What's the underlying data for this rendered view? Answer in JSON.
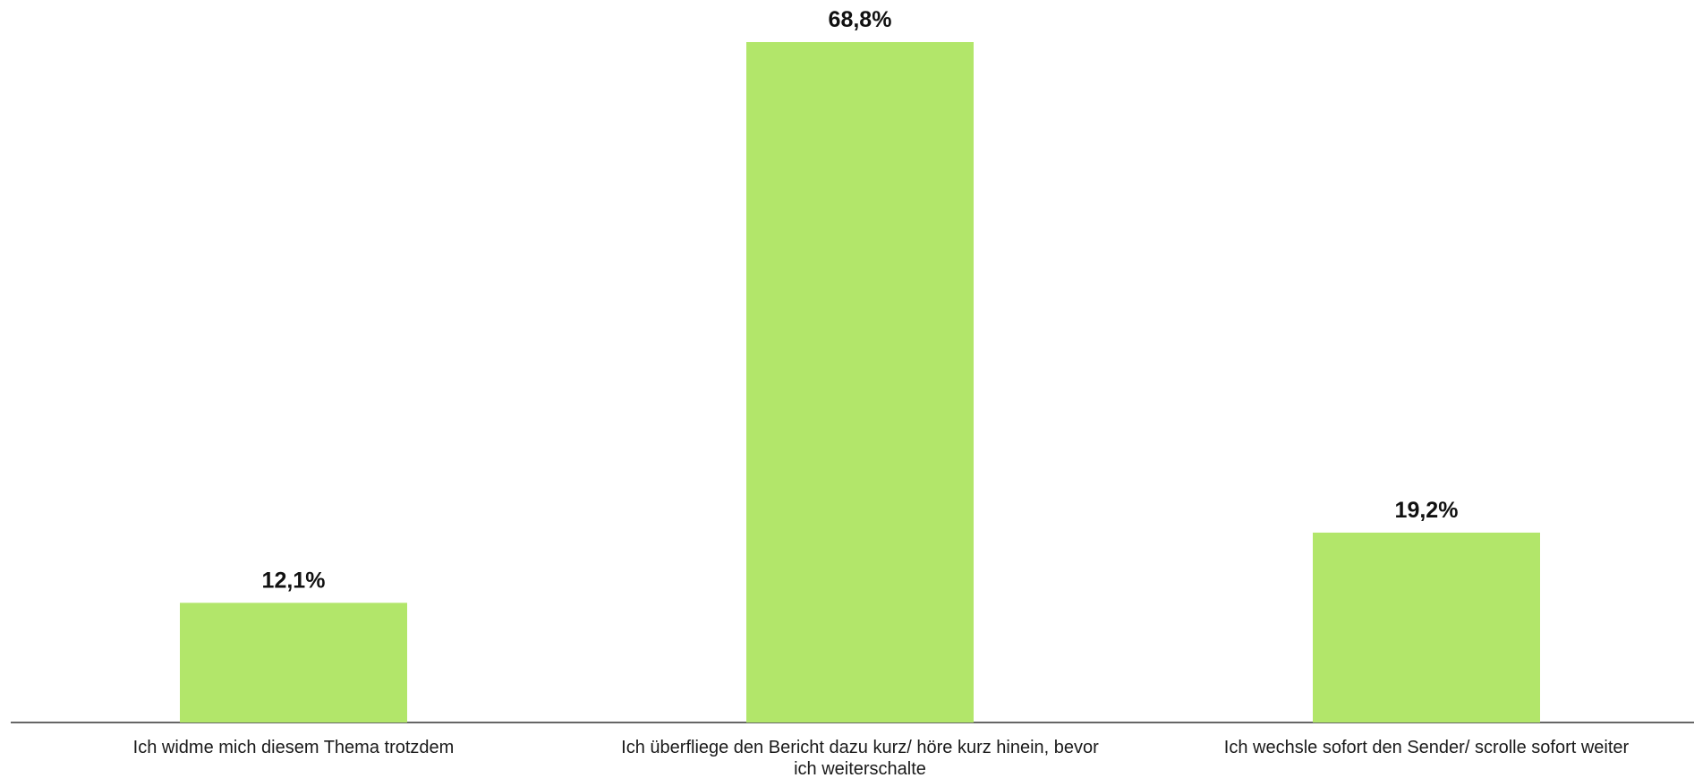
{
  "chart_data": {
    "type": "bar",
    "categories": [
      "Ich widme mich diesem Thema trotzdem",
      "Ich überfliege den Bericht dazu kurz/ höre kurz hinein, bevor ich weiterschalte",
      "Ich wechsle sofort den Sender/ scrolle sofort weiter"
    ],
    "category_label_lines": [
      [
        "Ich widme mich diesem Thema trotzdem"
      ],
      [
        "Ich überfliege den Bericht dazu kurz/ höre kurz hinein, bevor",
        "ich weiterschalte"
      ],
      [
        "Ich wechsle sofort den Sender/ scrolle sofort weiter"
      ]
    ],
    "values": [
      12.1,
      68.8,
      19.2
    ],
    "value_labels": [
      "12,1%",
      "68,8%",
      "19,2%"
    ],
    "title": "",
    "xlabel": "",
    "ylabel": "",
    "ylim": [
      0,
      68.8
    ],
    "grid": false,
    "legend": "none",
    "colors": {
      "bar": "#b2e66a",
      "axis": "#333333",
      "text": "#111111"
    }
  }
}
